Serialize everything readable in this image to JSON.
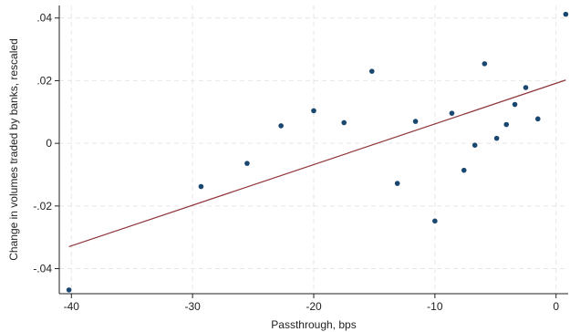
{
  "chart_data": {
    "type": "scatter",
    "xlabel": "Passthrough, bps",
    "ylabel": "Change in volumes traded by banks, rescaled",
    "xlim": [
      -41,
      1
    ],
    "ylim": [
      -0.048,
      0.044
    ],
    "x_ticks": [
      -40,
      -30,
      -20,
      -10,
      0
    ],
    "x_tick_labels": [
      "-40",
      "-30",
      "-20",
      "-10",
      "0"
    ],
    "y_ticks": [
      -0.04,
      -0.02,
      0,
      0.02,
      0.04
    ],
    "y_tick_labels": [
      "-.04",
      "-.02",
      "0",
      ".02",
      ".04"
    ],
    "grid": true,
    "legend": "none",
    "colors": {
      "points": "#1a476f",
      "fit_line": "#90353b",
      "grid": "#e6e6e6"
    },
    "points": {
      "x": [
        -40.2,
        -29.3,
        -25.5,
        -22.7,
        -20.0,
        -17.5,
        -15.2,
        -13.1,
        -11.6,
        -10.0,
        -8.6,
        -7.6,
        -6.7,
        -5.9,
        -4.9,
        -4.1,
        -3.4,
        -2.5,
        -1.5,
        0.8
      ],
      "y": [
        -0.0468,
        -0.0138,
        -0.0064,
        0.0056,
        0.0104,
        0.0066,
        0.023,
        -0.0128,
        0.007,
        -0.0248,
        0.0096,
        -0.0086,
        -0.0006,
        0.0254,
        0.0016,
        0.006,
        0.0124,
        0.0178,
        0.0078,
        0.0412
      ]
    },
    "fit_line": {
      "x": [
        -40.2,
        0.8
      ],
      "y": [
        -0.033,
        0.0202
      ]
    }
  }
}
